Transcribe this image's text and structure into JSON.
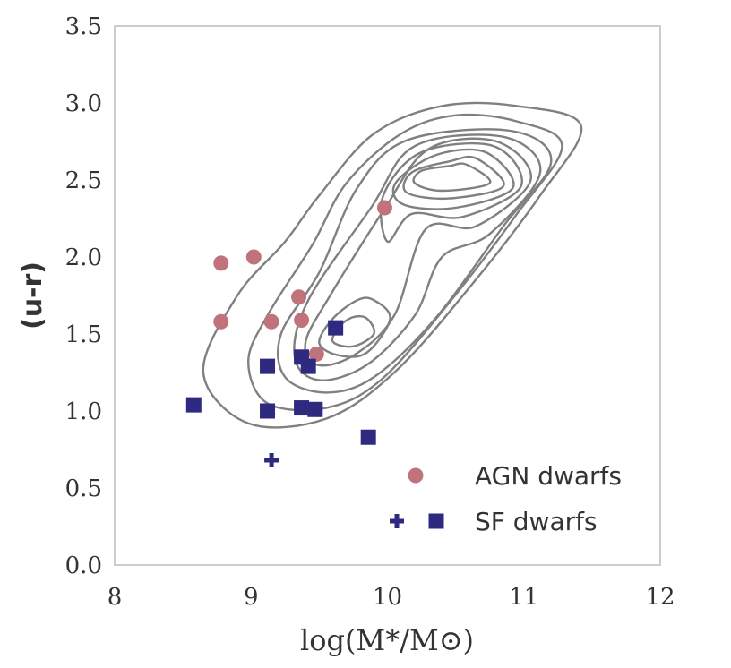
{
  "chart_data": {
    "type": "scatter",
    "title": "",
    "xlabel": "log(M*/M⊙)",
    "ylabel": "(u-r)",
    "xlim": [
      8,
      12
    ],
    "ylim": [
      0.0,
      3.5
    ],
    "xticks": [
      8,
      9,
      10,
      11,
      12
    ],
    "xtick_labels": [
      "8",
      "9",
      "10",
      "11",
      "12"
    ],
    "yticks": [
      0.0,
      0.5,
      1.0,
      1.5,
      2.0,
      2.5,
      3.0,
      3.5
    ],
    "ytick_labels": [
      "0.0",
      "0.5",
      "1.0",
      "1.5",
      "2.0",
      "2.5",
      "3.0",
      "3.5"
    ],
    "grid": false,
    "legend_position": "bottom-right",
    "background_density": {
      "style": "gray contour lines",
      "color": "#808080",
      "levels": [
        [
          [
            10.95,
            2.98
          ],
          [
            11.42,
            2.85
          ],
          [
            11.12,
            2.4
          ],
          [
            10.6,
            1.8
          ],
          [
            10.05,
            1.25
          ],
          [
            9.55,
            0.95
          ],
          [
            8.98,
            0.92
          ],
          [
            8.65,
            1.25
          ],
          [
            8.9,
            1.75
          ],
          [
            9.25,
            2.1
          ],
          [
            9.5,
            2.4
          ],
          [
            9.9,
            2.8
          ],
          [
            10.4,
            2.98
          ]
        ],
        [
          [
            10.95,
            2.88
          ],
          [
            11.28,
            2.72
          ],
          [
            10.95,
            2.28
          ],
          [
            10.45,
            1.7
          ],
          [
            9.95,
            1.2
          ],
          [
            9.55,
            1.02
          ],
          [
            9.12,
            1.05
          ],
          [
            8.98,
            1.32
          ],
          [
            9.12,
            1.62
          ],
          [
            9.45,
            2.08
          ],
          [
            9.7,
            2.48
          ],
          [
            10.1,
            2.8
          ],
          [
            10.5,
            2.92
          ]
        ],
        [
          [
            10.9,
            2.82
          ],
          [
            11.2,
            2.62
          ],
          [
            10.85,
            2.2
          ],
          [
            10.35,
            1.6
          ],
          [
            9.9,
            1.22
          ],
          [
            9.55,
            1.12
          ],
          [
            9.25,
            1.22
          ],
          [
            9.22,
            1.5
          ],
          [
            9.5,
            1.9
          ],
          [
            9.78,
            2.45
          ],
          [
            10.15,
            2.76
          ]
        ],
        [
          [
            10.85,
            2.78
          ],
          [
            11.12,
            2.55
          ],
          [
            10.75,
            2.15
          ],
          [
            10.4,
            2.0
          ],
          [
            10.2,
            1.62
          ],
          [
            9.85,
            1.3
          ],
          [
            9.5,
            1.2
          ],
          [
            9.32,
            1.35
          ],
          [
            9.42,
            1.72
          ],
          [
            9.88,
            2.32
          ],
          [
            10.2,
            2.72
          ]
        ],
        [
          [
            10.8,
            2.75
          ],
          [
            11.05,
            2.5
          ],
          [
            10.65,
            2.2
          ],
          [
            10.28,
            2.18
          ],
          [
            10.05,
            1.62
          ],
          [
            9.75,
            1.36
          ],
          [
            9.48,
            1.3
          ],
          [
            9.4,
            1.45
          ],
          [
            9.58,
            1.75
          ],
          [
            9.97,
            2.3
          ],
          [
            10.3,
            2.7
          ]
        ],
        [
          [
            10.78,
            2.72
          ],
          [
            10.98,
            2.46
          ],
          [
            10.55,
            2.26
          ],
          [
            10.18,
            2.28
          ],
          [
            10.0,
            2.1
          ],
          [
            9.97,
            2.4
          ],
          [
            10.25,
            2.68
          ]
        ],
        [
          [
            10.72,
            2.68
          ],
          [
            10.92,
            2.45
          ],
          [
            10.5,
            2.32
          ],
          [
            10.12,
            2.34
          ],
          [
            10.06,
            2.48
          ],
          [
            10.35,
            2.66
          ]
        ],
        [
          [
            10.65,
            2.64
          ],
          [
            10.85,
            2.46
          ],
          [
            10.45,
            2.38
          ],
          [
            10.14,
            2.42
          ],
          [
            10.18,
            2.55
          ],
          [
            10.45,
            2.62
          ]
        ],
        [
          [
            10.58,
            2.6
          ],
          [
            10.75,
            2.48
          ],
          [
            10.4,
            2.43
          ],
          [
            10.2,
            2.48
          ],
          [
            10.25,
            2.56
          ],
          [
            10.45,
            2.59
          ]
        ],
        [
          [
            9.9,
            1.72
          ],
          [
            10.02,
            1.6
          ],
          [
            9.85,
            1.38
          ],
          [
            9.65,
            1.36
          ],
          [
            9.5,
            1.44
          ],
          [
            9.6,
            1.6
          ],
          [
            9.78,
            1.72
          ]
        ],
        [
          [
            9.85,
            1.6
          ],
          [
            9.9,
            1.5
          ],
          [
            9.75,
            1.42
          ],
          [
            9.6,
            1.45
          ],
          [
            9.65,
            1.55
          ],
          [
            9.75,
            1.61
          ]
        ]
      ]
    },
    "series": [
      {
        "name": "AGN dwarfs",
        "marker": "circle",
        "color": "#c0737a",
        "points": [
          [
            8.78,
            1.96
          ],
          [
            9.02,
            2.0
          ],
          [
            8.78,
            1.58
          ],
          [
            9.15,
            1.58
          ],
          [
            9.35,
            1.74
          ],
          [
            9.37,
            1.59
          ],
          [
            9.48,
            1.37
          ],
          [
            9.98,
            2.32
          ]
        ]
      },
      {
        "name": "SF dwarfs",
        "marker": "square",
        "color": "#2e2a80",
        "points": [
          [
            8.58,
            1.04
          ],
          [
            9.12,
            1.29
          ],
          [
            9.37,
            1.35
          ],
          [
            9.42,
            1.29
          ],
          [
            9.62,
            1.54
          ],
          [
            9.12,
            1.0
          ],
          [
            9.37,
            1.02
          ],
          [
            9.47,
            1.01
          ],
          [
            9.86,
            0.83
          ]
        ]
      },
      {
        "name": "SF dwarfs",
        "marker": "plus",
        "color": "#2e2a80",
        "points": [
          [
            9.15,
            0.68
          ]
        ]
      }
    ],
    "legend": [
      {
        "label": "AGN dwarfs",
        "markers": [
          "circle"
        ],
        "colors": [
          "#c0737a"
        ]
      },
      {
        "label": "SF dwarfs",
        "markers": [
          "plus",
          "square"
        ],
        "colors": [
          "#2e2a80",
          "#2e2a80"
        ]
      }
    ],
    "axes_frame_color": "#cccccc"
  }
}
